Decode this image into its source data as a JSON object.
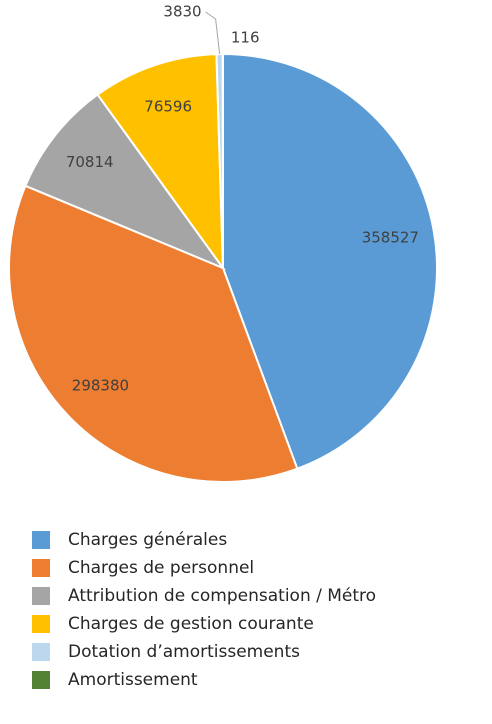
{
  "chart_data": {
    "type": "pie",
    "categories": [
      "Charges générales",
      "Charges de personnel",
      "Attribution de compensation / Métro",
      "Charges de gestion courante",
      "Dotation d’amortissements",
      "Amortissement"
    ],
    "values": [
      358527,
      298380,
      70814,
      76596,
      3830,
      116
    ],
    "colors": [
      "#5b9bd5",
      "#ed7d31",
      "#a5a5a5",
      "#ffc000",
      "#bdd7ee",
      "#548235"
    ],
    "legend": "bottom"
  }
}
